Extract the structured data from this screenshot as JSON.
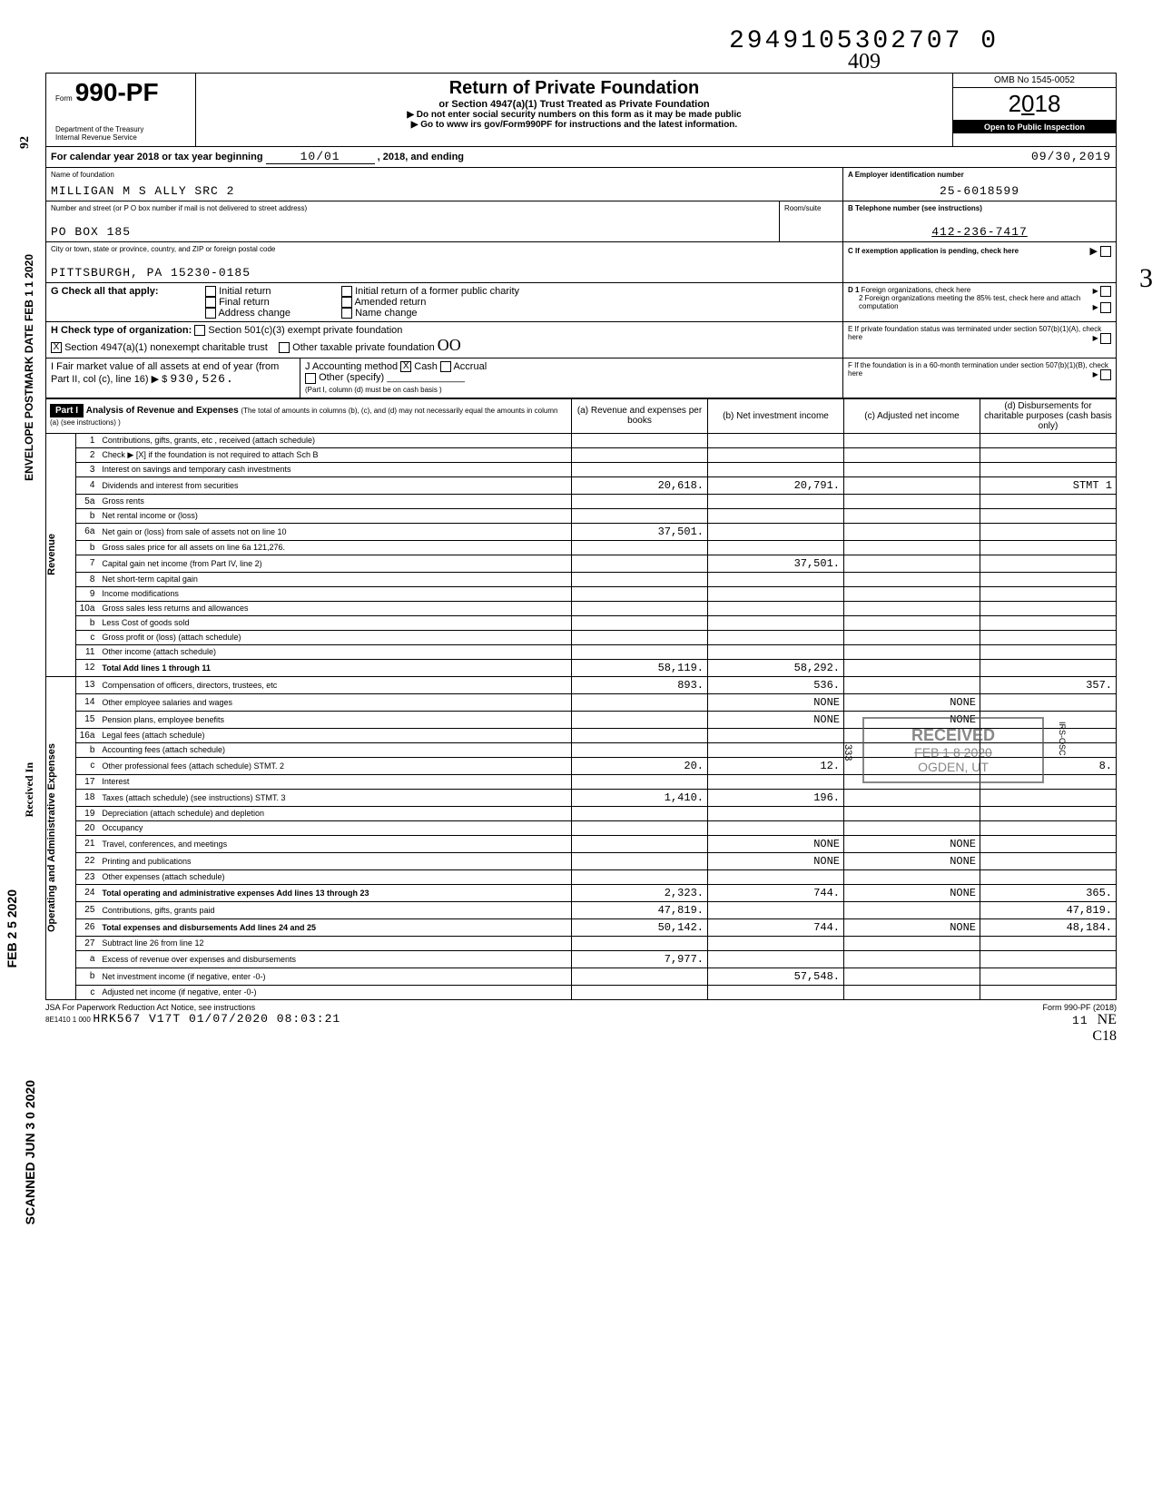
{
  "doc_number": "2949105302707 0",
  "handwritten_top": "409",
  "form": {
    "prefix": "Form",
    "number": "990-PF",
    "dept": "Department of the Treasury",
    "irs": "Internal Revenue Service"
  },
  "title": {
    "main": "Return of Private Foundation",
    "sub": "or Section 4947(a)(1) Trust Treated as Private Foundation",
    "instr1": "▶ Do not enter social security numbers on this form as it may be made public",
    "instr2": "▶ Go to www irs gov/Form990PF for instructions and the latest information."
  },
  "omb": {
    "no": "OMB No 1545-0052",
    "year": "2018",
    "inspect": "Open to Public Inspection"
  },
  "calendar": {
    "label": "For calendar year 2018 or tax year beginning",
    "begin": "10/01",
    "mid": ", 2018, and ending",
    "end": "09/30,2019"
  },
  "foundation": {
    "name_label": "Name of foundation",
    "name": "MILLIGAN M S ALLY SRC 2",
    "ein_label": "A  Employer identification number",
    "ein": "25-6018599",
    "addr_label": "Number and street (or P O  box number if mail is not delivered to street address)",
    "addr": "PO BOX 185",
    "room_label": "Room/suite",
    "phone_label": "B  Telephone number (see instructions)",
    "phone": "412-236-7417",
    "city_label": "City or town, state or province, country, and ZIP or foreign postal code",
    "city": "PITTSBURGH, PA 15230-0185"
  },
  "section_c": "C  If exemption application is pending, check here",
  "section_g": {
    "label": "G  Check all that apply:",
    "opt1": "Initial return",
    "opt2": "Final return",
    "opt3": "Address change",
    "opt4": "Initial return of a former public charity",
    "opt5": "Amended return",
    "opt6": "Name change"
  },
  "section_d": {
    "d1": "D  1  Foreign organizations, check here",
    "d2": "2  Foreign organizations meeting the 85% test, check here and attach computation"
  },
  "section_h": {
    "label": "H  Check type of organization:",
    "opt1": "Section 501(c)(3) exempt private foundation",
    "opt2": "Section 4947(a)(1) nonexempt charitable trust",
    "opt3": "Other taxable private foundation"
  },
  "section_e": "E  If private foundation status was terminated under section 507(b)(1)(A), check here",
  "section_f": "F  If the foundation is in a 60-month termination under section 507(b)(1)(B), check here",
  "section_i": {
    "label": "I  Fair market value of all assets at end of year (from Part II, col (c), line 16) ▶ $",
    "value": "930,526."
  },
  "section_j": {
    "label": "J Accounting method",
    "cash": "Cash",
    "accrual": "Accrual",
    "other": "Other (specify)",
    "note": "(Part I, column (d) must be on cash basis )"
  },
  "part1": {
    "header": "Part I",
    "title": "Analysis of Revenue and Expenses",
    "note": "(The total of amounts in columns (b), (c), and (d) may not necessarily equal the amounts in column (a) (see instructions) )",
    "col_a": "(a) Revenue and expenses per books",
    "col_b": "(b) Net investment income",
    "col_c": "(c) Adjusted net income",
    "col_d": "(d) Disbursements for charitable purposes (cash basis only)"
  },
  "vert_revenue": "Revenue",
  "vert_expenses": "Operating and Administrative Expenses",
  "rows": [
    {
      "n": "1",
      "desc": "Contributions, gifts, grants, etc , received (attach schedule)",
      "a": "",
      "b": "",
      "c": "",
      "d": ""
    },
    {
      "n": "2",
      "desc": "Check ▶ [X] if the foundation is not required to attach Sch B",
      "a": "",
      "b": "",
      "c": "",
      "d": ""
    },
    {
      "n": "3",
      "desc": "Interest on savings and temporary cash investments",
      "a": "",
      "b": "",
      "c": "",
      "d": ""
    },
    {
      "n": "4",
      "desc": "Dividends and interest from securities",
      "a": "20,618.",
      "b": "20,791.",
      "c": "",
      "d": "STMT 1"
    },
    {
      "n": "5a",
      "desc": "Gross rents",
      "a": "",
      "b": "",
      "c": "",
      "d": ""
    },
    {
      "n": "b",
      "desc": "Net rental income or (loss)",
      "a": "",
      "b": "",
      "c": "",
      "d": ""
    },
    {
      "n": "6a",
      "desc": "Net gain or (loss) from sale of assets not on line 10",
      "a": "37,501.",
      "b": "",
      "c": "",
      "d": ""
    },
    {
      "n": "b",
      "desc": "Gross sales price for all assets on line 6a          121,276.",
      "a": "",
      "b": "",
      "c": "",
      "d": ""
    },
    {
      "n": "7",
      "desc": "Capital gain net income (from Part IV, line 2)",
      "a": "",
      "b": "37,501.",
      "c": "",
      "d": ""
    },
    {
      "n": "8",
      "desc": "Net short-term capital gain",
      "a": "",
      "b": "",
      "c": "",
      "d": ""
    },
    {
      "n": "9",
      "desc": "Income modifications",
      "a": "",
      "b": "",
      "c": "",
      "d": ""
    },
    {
      "n": "10a",
      "desc": "Gross sales less returns and allowances",
      "a": "",
      "b": "",
      "c": "",
      "d": ""
    },
    {
      "n": "b",
      "desc": "Less Cost of goods sold",
      "a": "",
      "b": "",
      "c": "",
      "d": ""
    },
    {
      "n": "c",
      "desc": "Gross profit or (loss) (attach schedule)",
      "a": "",
      "b": "",
      "c": "",
      "d": ""
    },
    {
      "n": "11",
      "desc": "Other income (attach schedule)",
      "a": "",
      "b": "",
      "c": "",
      "d": ""
    },
    {
      "n": "12",
      "desc": "Total Add lines 1 through 11",
      "a": "58,119.",
      "b": "58,292.",
      "c": "",
      "d": ""
    },
    {
      "n": "13",
      "desc": "Compensation of officers, directors, trustees, etc",
      "a": "893.",
      "b": "536.",
      "c": "",
      "d": "357."
    },
    {
      "n": "14",
      "desc": "Other employee salaries and wages",
      "a": "",
      "b": "NONE",
      "c": "NONE",
      "d": ""
    },
    {
      "n": "15",
      "desc": "Pension plans, employee benefits",
      "a": "",
      "b": "NONE",
      "c": "NONE",
      "d": ""
    },
    {
      "n": "16a",
      "desc": "Legal fees (attach schedule)",
      "a": "",
      "b": "",
      "c": "",
      "d": ""
    },
    {
      "n": "b",
      "desc": "Accounting fees (attach schedule)",
      "a": "",
      "b": "",
      "c": "",
      "d": ""
    },
    {
      "n": "c",
      "desc": "Other professional fees (attach schedule) STMT. 2",
      "a": "20.",
      "b": "12.",
      "c": "",
      "d": "8."
    },
    {
      "n": "17",
      "desc": "Interest",
      "a": "",
      "b": "",
      "c": "",
      "d": ""
    },
    {
      "n": "18",
      "desc": "Taxes (attach schedule) (see instructions) STMT. 3",
      "a": "1,410.",
      "b": "196.",
      "c": "",
      "d": ""
    },
    {
      "n": "19",
      "desc": "Depreciation (attach schedule) and depletion",
      "a": "",
      "b": "",
      "c": "",
      "d": ""
    },
    {
      "n": "20",
      "desc": "Occupancy",
      "a": "",
      "b": "",
      "c": "",
      "d": ""
    },
    {
      "n": "21",
      "desc": "Travel, conferences, and meetings",
      "a": "",
      "b": "NONE",
      "c": "NONE",
      "d": ""
    },
    {
      "n": "22",
      "desc": "Printing and publications",
      "a": "",
      "b": "NONE",
      "c": "NONE",
      "d": ""
    },
    {
      "n": "23",
      "desc": "Other expenses (attach schedule)",
      "a": "",
      "b": "",
      "c": "",
      "d": ""
    },
    {
      "n": "24",
      "desc": "Total operating and administrative expenses Add lines 13 through 23",
      "a": "2,323.",
      "b": "744.",
      "c": "NONE",
      "d": "365."
    },
    {
      "n": "25",
      "desc": "Contributions, gifts, grants paid",
      "a": "47,819.",
      "b": "",
      "c": "",
      "d": "47,819."
    },
    {
      "n": "26",
      "desc": "Total expenses and disbursements Add lines 24 and 25",
      "a": "50,142.",
      "b": "744.",
      "c": "NONE",
      "d": "48,184."
    },
    {
      "n": "27",
      "desc": "Subtract line 26 from line 12",
      "a": "",
      "b": "",
      "c": "",
      "d": ""
    },
    {
      "n": "a",
      "desc": "Excess of revenue over expenses and disbursements",
      "a": "7,977.",
      "b": "",
      "c": "",
      "d": ""
    },
    {
      "n": "b",
      "desc": "Net investment income (if negative, enter -0-)",
      "a": "",
      "b": "57,548.",
      "c": "",
      "d": ""
    },
    {
      "n": "c",
      "desc": "Adjusted net income (if negative, enter -0-)",
      "a": "",
      "b": "",
      "c": "",
      "d": ""
    }
  ],
  "stamp_received": {
    "line1": "RECEIVED",
    "line2": "FEB 1 8 2020",
    "line3": "OGDEN, UT"
  },
  "stamp_side_92": "92",
  "stamp_side_1": "ENVELOPE POSTMARK DATE FEB 1 1 2020",
  "stamp_side_2": "Received In",
  "stamp_side_3": "FEB 2 5 2020",
  "stamp_side_4": "SCANNED JUN 3 0 2020",
  "footer": {
    "left": "JSA For Paperwork Reduction Act Notice, see instructions",
    "sub": "8E1410 1 000",
    "mid": "HRK567 V17T 01/07/2020 08:03:21",
    "right": "Form 990-PF (2018)",
    "page": "11",
    "hand1": "C18",
    "hand2": "NE"
  }
}
